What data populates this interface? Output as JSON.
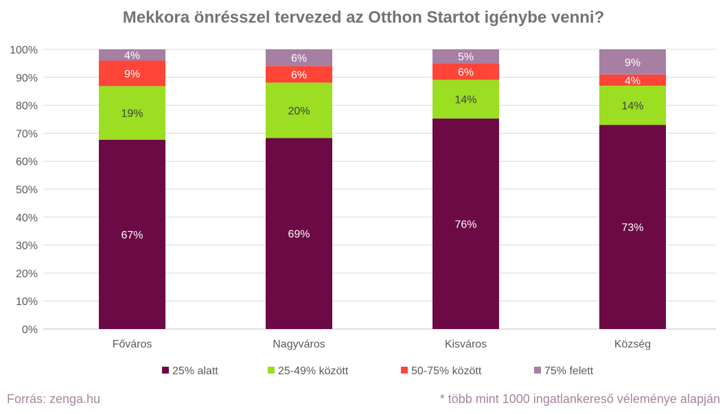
{
  "chart_data": {
    "type": "bar",
    "stacked": true,
    "title": "Mekkora önrésszel tervezed az Otthon Startot igénybe venni?",
    "categories": [
      "Főváros",
      "Nagyváros",
      "Kisváros",
      "Község"
    ],
    "series": [
      {
        "name": "25% alatt",
        "color": "#6B0A45",
        "label_color": "#FFFFFF",
        "values": [
          67,
          69,
          76,
          73
        ]
      },
      {
        "name": "25-49% között",
        "color": "#9BDE22",
        "label_color": "#404040",
        "values": [
          19,
          20,
          14,
          14
        ]
      },
      {
        "name": "50-75% között",
        "color": "#FF4438",
        "label_color": "#FFFFFF",
        "values": [
          9,
          6,
          6,
          4
        ]
      },
      {
        "name": "75% felett",
        "color": "#A77FA3",
        "label_color": "#FFFFFF",
        "values": [
          4,
          6,
          5,
          9
        ]
      }
    ],
    "ylim": [
      0,
      100
    ],
    "yticks": [
      "0%",
      "10%",
      "20%",
      "30%",
      "40%",
      "50%",
      "60%",
      "70%",
      "80%",
      "90%",
      "100%"
    ],
    "grid": true,
    "legend": "bottom"
  },
  "footer": {
    "source": "Forrás: zenga.hu",
    "note": "* több mint 1000 ingatlankereső véleménye alapján"
  }
}
